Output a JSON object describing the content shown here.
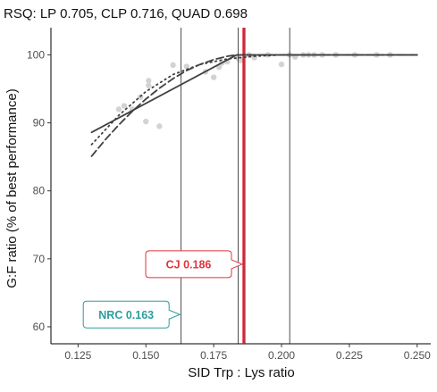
{
  "chart_data": {
    "type": "scatter",
    "title": "RSQ: LP 0.705, CLP 0.716, QUAD 0.698",
    "xlabel": "SID Trp : Lys ratio",
    "ylabel": "G:F ratio (% of best performance)",
    "xlim": [
      0.115,
      0.255
    ],
    "ylim": [
      57.5,
      104
    ],
    "x_ticks": [
      0.125,
      0.15,
      0.175,
      0.2,
      0.225,
      0.25
    ],
    "x_tick_labels": [
      "0.125",
      "0.150",
      "0.175",
      "0.200",
      "0.225",
      "0.250"
    ],
    "y_ticks": [
      60,
      70,
      80,
      90,
      100
    ],
    "y_tick_labels": [
      "60",
      "70",
      "80",
      "90",
      "100"
    ],
    "grid": false,
    "points": {
      "color": "#d3d3d3",
      "x": [
        0.14,
        0.142,
        0.145,
        0.148,
        0.15,
        0.151,
        0.151,
        0.155,
        0.16,
        0.165,
        0.172,
        0.175,
        0.177,
        0.178,
        0.18,
        0.184,
        0.185,
        0.188,
        0.19,
        0.195,
        0.2,
        0.203,
        0.205,
        0.208,
        0.21,
        0.212,
        0.215,
        0.22,
        0.227,
        0.235,
        0.24
      ],
      "y": [
        92,
        92.5,
        92,
        93.8,
        90.2,
        95.5,
        96.2,
        89.5,
        98.5,
        98.3,
        97.5,
        96.7,
        98.2,
        98.8,
        99,
        99.5,
        99.2,
        100,
        99.6,
        100,
        98.6,
        100,
        99.7,
        100,
        100,
        100,
        100,
        100,
        100,
        100,
        100
      ]
    },
    "series": [
      {
        "model": "LP",
        "style": "solid",
        "color": "#404040",
        "x": [
          0.13,
          0.1835,
          0.25
        ],
        "y": [
          88.6,
          100,
          100
        ]
      },
      {
        "model": "CLP",
        "style": "dashed",
        "color": "#404040",
        "x": [
          0.13,
          0.135,
          0.14,
          0.145,
          0.15,
          0.155,
          0.16,
          0.165,
          0.17,
          0.175,
          0.18,
          0.1835,
          0.186,
          0.19,
          0.2,
          0.25
        ],
        "y": [
          85.1,
          87.5,
          89.7,
          91.7,
          93.5,
          95.1,
          96.5,
          97.7,
          98.6,
          99.3,
          99.8,
          100,
          100,
          100,
          100,
          100
        ]
      },
      {
        "model": "QUAD",
        "style": "dotted",
        "color": "#404040",
        "x": [
          0.13,
          0.14,
          0.15,
          0.16,
          0.17,
          0.18,
          0.19,
          0.2,
          0.205,
          0.21,
          0.25
        ],
        "y": [
          86.8,
          91.1,
          94.6,
          97.1,
          98.6,
          99.4,
          99.8,
          100,
          100,
          100,
          100
        ]
      }
    ],
    "reference_lines": [
      {
        "x": 0.163,
        "color": "#000000",
        "width": 0.7
      },
      {
        "x": 0.184,
        "color": "#000000",
        "width": 0.7
      },
      {
        "x": 0.1865,
        "color": "#000000",
        "width": 0.7
      },
      {
        "x": 0.203,
        "color": "#000000",
        "width": 0.7
      },
      {
        "x": 0.186,
        "color": "#e8192c",
        "width": 2.4
      }
    ],
    "annotations": [
      {
        "text": "CJ 0.186",
        "color": "#e0333f",
        "x": 0.1855,
        "y": 69.2
      },
      {
        "text": "NRC 0.163",
        "color": "#2a9d9c",
        "x": 0.1625,
        "y": 61.8
      }
    ]
  }
}
